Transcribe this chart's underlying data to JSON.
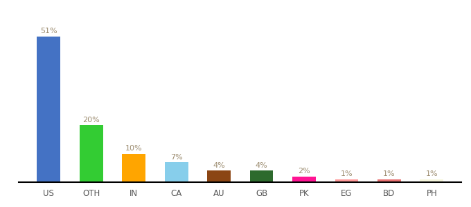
{
  "categories": [
    "US",
    "OTH",
    "IN",
    "CA",
    "AU",
    "GB",
    "PK",
    "EG",
    "BD",
    "PH"
  ],
  "values": [
    51,
    20,
    10,
    7,
    4,
    4,
    2,
    1,
    1,
    1
  ],
  "labels": [
    "51%",
    "20%",
    "10%",
    "7%",
    "4%",
    "4%",
    "2%",
    "1%",
    "1%",
    "1%"
  ],
  "bar_colors": [
    "#4472C4",
    "#33CC33",
    "#FFA500",
    "#87CEEB",
    "#8B4513",
    "#2D6A2D",
    "#FF1493",
    "#FF9999",
    "#E87070",
    "#F5F5DC"
  ],
  "background_color": "#ffffff",
  "ylim": [
    0,
    58
  ],
  "label_fontsize": 8,
  "tick_fontsize": 8.5,
  "label_color": "#9B8B6E",
  "bar_width": 0.55,
  "figsize": [
    6.8,
    3.0
  ],
  "dpi": 100
}
